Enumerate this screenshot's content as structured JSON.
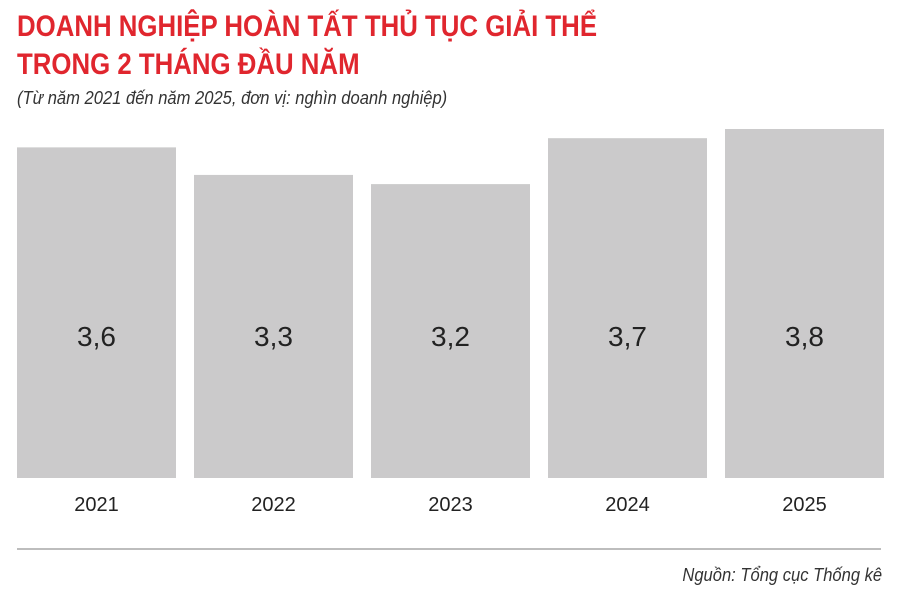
{
  "title_lines": [
    "DOANH NGHIỆP HOÀN TẤT THỦ TỤC GIẢI THỂ",
    "TRONG 2 THÁNG ĐẦU NĂM"
  ],
  "subtitle": "(Từ năm 2021 đến năm 2025, đơn vị: nghìn doanh nghiệp)",
  "source": "Nguồn: Tổng cục Thống kê",
  "colors": {
    "title": "#e0262e",
    "bar": "#cbcacb",
    "text": "#222222",
    "divider": "#bdbdbd"
  },
  "chart_data": {
    "type": "bar",
    "title": "DOANH NGHIỆP HOÀN TẤT THỦ TỤC GIẢI THỂ TRONG 2 THÁNG ĐẦU NĂM",
    "subtitle": "(Từ năm 2021 đến năm 2025, đơn vị: nghìn doanh nghiệp)",
    "categories": [
      "2021",
      "2022",
      "2023",
      "2024",
      "2025"
    ],
    "values": [
      3.6,
      3.3,
      3.2,
      3.7,
      3.8
    ],
    "value_labels": [
      "3,6",
      "3,3",
      "3,2",
      "3,7",
      "3,8"
    ],
    "xlabel": "",
    "ylabel": "",
    "ylim": [
      0,
      3.8
    ],
    "grid": false,
    "legend": "none"
  }
}
